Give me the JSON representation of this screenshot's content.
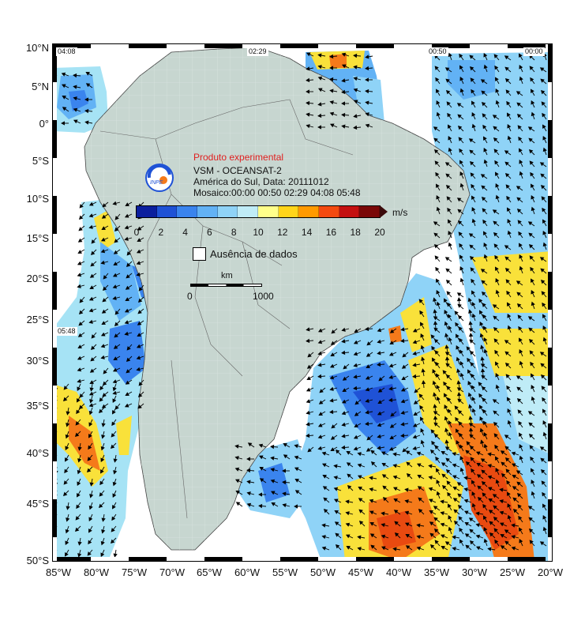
{
  "map": {
    "lat_labels": [
      "10°N",
      "5°N",
      "0°",
      "5°S",
      "10°S",
      "15°S",
      "20°S",
      "25°S",
      "30°S",
      "35°S",
      "40°S",
      "45°S",
      "50°S"
    ],
    "lon_labels": [
      "85°W",
      "80°W",
      "75°W",
      "70°W",
      "65°W",
      "60°W",
      "55°W",
      "50°W",
      "45°W",
      "40°W",
      "35°W",
      "30°W",
      "25°W",
      "20°W"
    ],
    "time_labels": [
      "04:08",
      "02:29",
      "00:50",
      "00:00",
      "05:48"
    ]
  },
  "legend": {
    "title": "Produto experimental",
    "line1": "VSM - OCEANSAT-2",
    "line2": "América do Sul, Data: 20111012",
    "line3": "Mosaico:00:00 00:50 02:29 04:08 05:48",
    "logo_text": "INPE",
    "colorbar_unit": "m/s",
    "ticks": [
      "0",
      "2",
      "4",
      "6",
      "8",
      "10",
      "12",
      "14",
      "16",
      "18",
      "20"
    ],
    "colors": [
      "#0b1f9e",
      "#1f52d6",
      "#3a84ee",
      "#62b2f5",
      "#8fd3f7",
      "#bfecf7",
      "#ffff8a",
      "#ffd51a",
      "#ff9a00",
      "#f34a10",
      "#c41010",
      "#7a0707"
    ],
    "nodata_label": "Ausência de dados",
    "scale_unit": "km",
    "scale_start": "0",
    "scale_end": "1000"
  },
  "colors": {
    "land": "#c7d6d0",
    "ocean_light": "#a6e3f5",
    "ocean_dark": "#2e6fd8",
    "ocean_hot": "#f57a1a",
    "ocean_yellow": "#f9e13a"
  }
}
